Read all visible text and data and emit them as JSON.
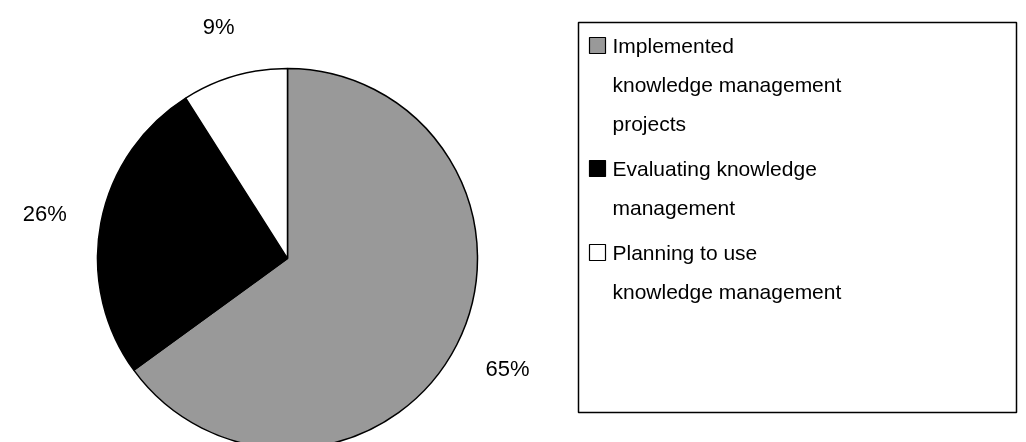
{
  "chart_data": {
    "type": "pie",
    "categories": [
      "Implemented knowledge management projects",
      "Evaluating knowledge management",
      "Planning to use knowledge management"
    ],
    "values": [
      65,
      26,
      9
    ],
    "colors": [
      "#999999",
      "#000000",
      "#ffffff"
    ],
    "value_labels": [
      "65%",
      "26%",
      "9%"
    ],
    "legend": "right"
  }
}
